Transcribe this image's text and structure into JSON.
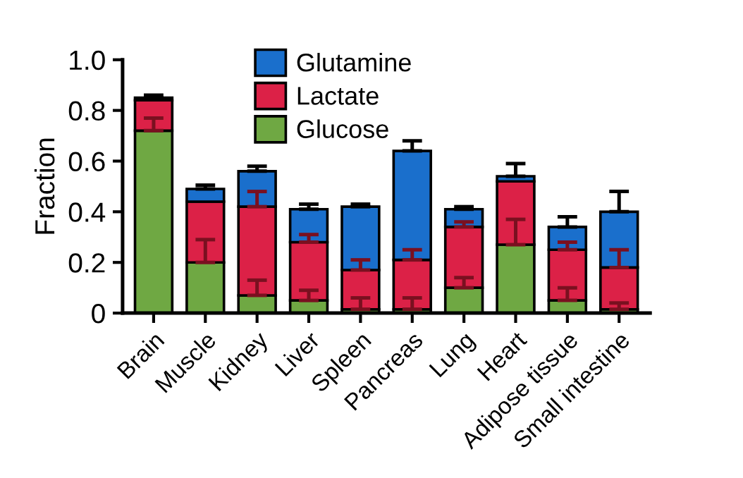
{
  "chart_data": {
    "type": "bar",
    "stacked": true,
    "ylabel": "Fraction",
    "categories": [
      "Brain",
      "Muscle",
      "Kidney",
      "Liver",
      "Spleen",
      "Pancreas",
      "Lung",
      "Heart",
      "Adipose tissue",
      "Small intestine"
    ],
    "series": [
      {
        "name": "Glucose",
        "color": "#6fa843",
        "values": [
          0.72,
          0.2,
          0.07,
          0.05,
          0.015,
          0.015,
          0.1,
          0.27,
          0.05,
          0.015
        ],
        "errors": [
          [
            0.72,
            0.77
          ],
          [
            0.2,
            0.29
          ],
          [
            0.07,
            0.13
          ],
          [
            0.05,
            0.09
          ],
          [
            0.015,
            0.06
          ],
          [
            0.015,
            0.06
          ],
          [
            0.1,
            0.14
          ],
          [
            0.27,
            0.37
          ],
          [
            0.05,
            0.1
          ],
          [
            0.015,
            0.04
          ]
        ]
      },
      {
        "name": "Lactate",
        "color": "#dc2147",
        "values": [
          0.12,
          0.24,
          0.35,
          0.23,
          0.155,
          0.195,
          0.24,
          0.25,
          0.2,
          0.165
        ],
        "errors": [
          null,
          null,
          [
            0.42,
            0.48
          ],
          [
            0.28,
            0.31
          ],
          [
            0.17,
            0.21
          ],
          [
            0.21,
            0.25
          ],
          [
            0.34,
            0.36
          ],
          null,
          [
            0.25,
            0.28
          ],
          [
            0.18,
            0.25
          ]
        ]
      },
      {
        "name": "Glutamine",
        "color": "#1a6fcc",
        "values": [
          0.01,
          0.05,
          0.14,
          0.13,
          0.25,
          0.43,
          0.07,
          0.02,
          0.09,
          0.22
        ],
        "errors": [
          [
            0.85,
            0.86
          ],
          [
            0.49,
            0.505
          ],
          [
            0.56,
            0.58
          ],
          [
            0.41,
            0.43
          ],
          [
            0.42,
            0.43
          ],
          [
            0.64,
            0.68
          ],
          [
            0.41,
            0.42
          ],
          [
            0.54,
            0.59
          ],
          [
            0.34,
            0.38
          ],
          [
            0.4,
            0.48
          ]
        ]
      }
    ],
    "ylim": [
      0,
      1.0
    ],
    "yticks": [
      {
        "value": 0,
        "label": "0"
      },
      {
        "value": 0.2,
        "label": "0.2"
      },
      {
        "value": 0.4,
        "label": "0.4"
      },
      {
        "value": 0.6,
        "label": "0.6"
      },
      {
        "value": 0.8,
        "label": "0.8"
      },
      {
        "value": 1.0,
        "label": "1.0"
      }
    ],
    "grid": false,
    "legend": "top"
  }
}
